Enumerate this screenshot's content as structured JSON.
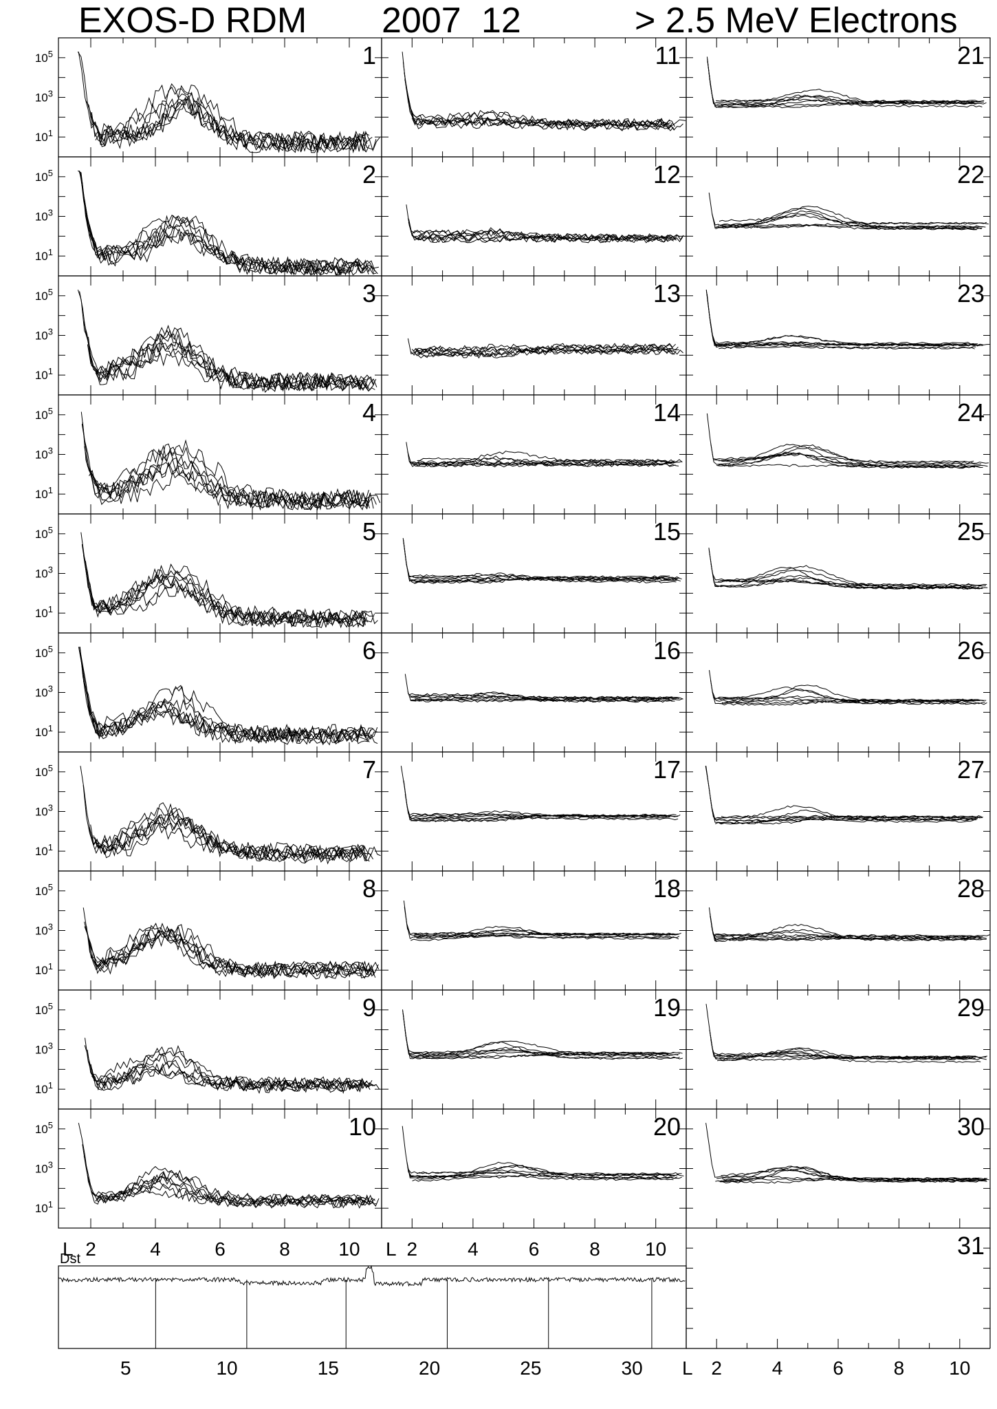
{
  "header": {
    "instrument": "EXOS-D RDM",
    "year": "2007",
    "month": "12",
    "energy": "> 2.5  MeV Electrons"
  },
  "axis_labels": {
    "l_axis": "L",
    "dst": "Dst"
  },
  "chart_data": {
    "type": "line",
    "title": "EXOS-D RDM 2007 12 > 2.5 MeV Electrons",
    "xlabel": "L",
    "xlim": [
      1,
      11
    ],
    "x_ticks": [
      "2",
      "4",
      "6",
      "8",
      "10"
    ],
    "yscale": "log",
    "ylim": [
      1,
      1000000
    ],
    "y_ticks": [
      "10^5",
      "10^3",
      "10^1"
    ],
    "grid": false,
    "panels": [
      {
        "day": "1",
        "belt_peak": 3.4,
        "peak_L": 4.8,
        "slot_min": 1.0,
        "outer_floor": 0.7,
        "noise": 0.45
      },
      {
        "day": "2",
        "belt_peak": 3.2,
        "peak_L": 4.9,
        "slot_min": 1.0,
        "outer_floor": 0.5,
        "noise": 0.4
      },
      {
        "day": "3",
        "belt_peak": 3.2,
        "peak_L": 4.6,
        "slot_min": 1.0,
        "outer_floor": 0.6,
        "noise": 0.45
      },
      {
        "day": "4",
        "belt_peak": 3.3,
        "peak_L": 4.6,
        "slot_min": 1.0,
        "outer_floor": 0.7,
        "noise": 0.45
      },
      {
        "day": "5",
        "belt_peak": 3.4,
        "peak_L": 4.5,
        "slot_min": 1.1,
        "outer_floor": 0.8,
        "noise": 0.4
      },
      {
        "day": "6",
        "belt_peak": 3.2,
        "peak_L": 4.5,
        "slot_min": 1.1,
        "outer_floor": 0.9,
        "noise": 0.4
      },
      {
        "day": "7",
        "belt_peak": 3.1,
        "peak_L": 4.4,
        "slot_min": 1.0,
        "outer_floor": 0.9,
        "noise": 0.4
      },
      {
        "day": "8",
        "belt_peak": 3.1,
        "peak_L": 4.4,
        "slot_min": 1.2,
        "outer_floor": 1.0,
        "noise": 0.35
      },
      {
        "day": "9",
        "belt_peak": 3.0,
        "peak_L": 4.2,
        "slot_min": 1.3,
        "outer_floor": 1.2,
        "noise": 0.3
      },
      {
        "day": "10",
        "belt_peak": 3.0,
        "peak_L": 4.2,
        "slot_min": 1.4,
        "outer_floor": 1.4,
        "noise": 0.25
      },
      {
        "day": "11",
        "belt_peak": 2.2,
        "peak_L": 5.0,
        "slot_min": 1.8,
        "outer_floor": 1.6,
        "noise": 0.2
      },
      {
        "day": "12",
        "belt_peak": 2.3,
        "peak_L": 5.0,
        "slot_min": 2.0,
        "outer_floor": 1.9,
        "noise": 0.15
      },
      {
        "day": "13",
        "belt_peak": 2.5,
        "peak_L": 5.0,
        "slot_min": 2.2,
        "outer_floor": 2.3,
        "noise": 0.15
      },
      {
        "day": "14",
        "belt_peak": 3.1,
        "peak_L": 5.0,
        "slot_min": 2.6,
        "outer_floor": 2.6,
        "noise": 0.08
      },
      {
        "day": "15",
        "belt_peak": 3.0,
        "peak_L": 5.0,
        "slot_min": 2.7,
        "outer_floor": 2.7,
        "noise": 0.06
      },
      {
        "day": "16",
        "belt_peak": 3.0,
        "peak_L": 5.0,
        "slot_min": 2.7,
        "outer_floor": 2.7,
        "noise": 0.06
      },
      {
        "day": "17",
        "belt_peak": 3.0,
        "peak_L": 4.6,
        "slot_min": 2.7,
        "outer_floor": 2.7,
        "noise": 0.05
      },
      {
        "day": "18",
        "belt_peak": 3.2,
        "peak_L": 4.8,
        "slot_min": 2.7,
        "outer_floor": 2.7,
        "noise": 0.05
      },
      {
        "day": "19",
        "belt_peak": 3.4,
        "peak_L": 5.0,
        "slot_min": 2.7,
        "outer_floor": 2.7,
        "noise": 0.05
      },
      {
        "day": "20",
        "belt_peak": 3.3,
        "peak_L": 5.2,
        "slot_min": 2.6,
        "outer_floor": 2.6,
        "noise": 0.05
      },
      {
        "day": "21",
        "belt_peak": 3.4,
        "peak_L": 5.0,
        "slot_min": 2.7,
        "outer_floor": 2.7,
        "noise": 0.05
      },
      {
        "day": "22",
        "belt_peak": 3.5,
        "peak_L": 5.0,
        "slot_min": 2.6,
        "outer_floor": 2.5,
        "noise": 0.05
      },
      {
        "day": "23",
        "belt_peak": 3.0,
        "peak_L": 4.6,
        "slot_min": 2.5,
        "outer_floor": 2.5,
        "noise": 0.05
      },
      {
        "day": "24",
        "belt_peak": 3.5,
        "peak_L": 4.7,
        "slot_min": 2.6,
        "outer_floor": 2.5,
        "noise": 0.05
      },
      {
        "day": "25",
        "belt_peak": 3.4,
        "peak_L": 4.6,
        "slot_min": 2.5,
        "outer_floor": 2.4,
        "noise": 0.05
      },
      {
        "day": "26",
        "belt_peak": 3.4,
        "peak_L": 4.8,
        "slot_min": 2.6,
        "outer_floor": 2.5,
        "noise": 0.05
      },
      {
        "day": "27",
        "belt_peak": 3.3,
        "peak_L": 4.7,
        "slot_min": 2.6,
        "outer_floor": 2.6,
        "noise": 0.05
      },
      {
        "day": "28",
        "belt_peak": 3.3,
        "peak_L": 4.9,
        "slot_min": 2.6,
        "outer_floor": 2.6,
        "noise": 0.05
      },
      {
        "day": "29",
        "belt_peak": 3.1,
        "peak_L": 4.5,
        "slot_min": 2.6,
        "outer_floor": 2.5,
        "noise": 0.05
      },
      {
        "day": "30",
        "belt_peak": 3.1,
        "peak_L": 4.5,
        "slot_min": 2.5,
        "outer_floor": 2.4,
        "noise": 0.05
      },
      {
        "day": "31",
        "belt_peak": null,
        "peak_L": null,
        "slot_min": null,
        "outer_floor": null,
        "noise": null
      }
    ],
    "dst": {
      "label": "Dst",
      "x_ticks": [
        "5",
        "10",
        "15",
        "20",
        "25",
        "30"
      ],
      "xlim": [
        1,
        32
      ]
    }
  }
}
